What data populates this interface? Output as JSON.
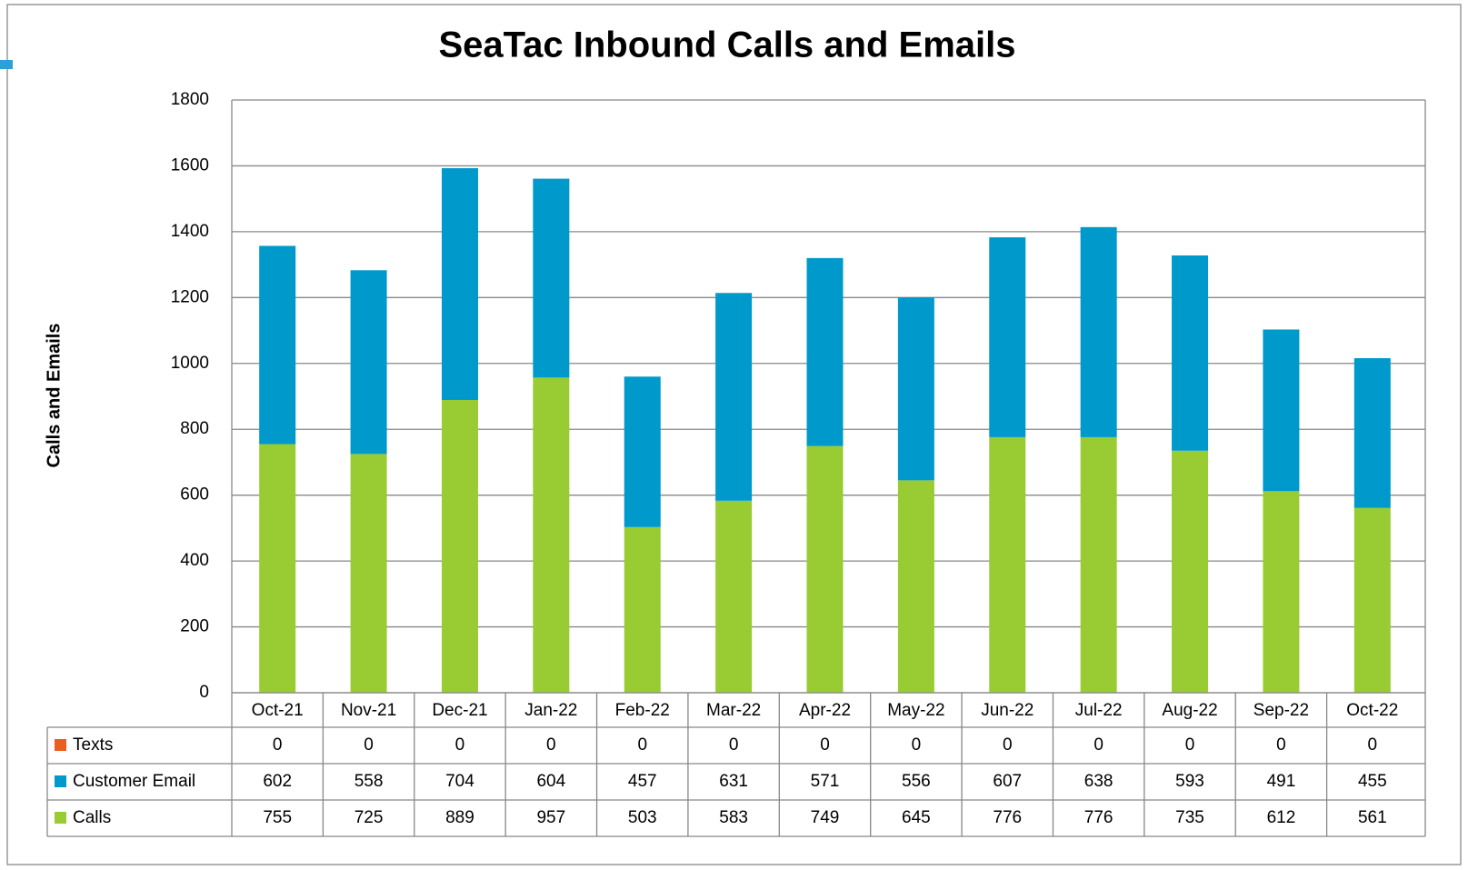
{
  "chart_data": {
    "type": "stacked_bar",
    "title": "SeaTac Inbound Calls and Emails",
    "y_label": "Calls and Emails",
    "categories": [
      "Oct-21",
      "Nov-21",
      "Dec-21",
      "Jan-22",
      "Feb-22",
      "Mar-22",
      "Apr-22",
      "May-22",
      "Jun-22",
      "Jul-22",
      "Aug-22",
      "Sep-22",
      "Oct-22"
    ],
    "series": [
      {
        "name": "Texts",
        "color": "#e8601c",
        "values": [
          0,
          0,
          0,
          0,
          0,
          0,
          0,
          0,
          0,
          0,
          0,
          0,
          0
        ]
      },
      {
        "name": "Customer Email",
        "color": "#0099cc",
        "values": [
          602,
          558,
          704,
          604,
          457,
          631,
          571,
          556,
          607,
          638,
          593,
          491,
          455
        ]
      },
      {
        "name": "Calls",
        "color": "#99cc33",
        "values": [
          755,
          725,
          889,
          957,
          503,
          583,
          749,
          645,
          776,
          776,
          735,
          612,
          561
        ]
      }
    ],
    "ylim": [
      0,
      1800
    ],
    "yticks": [
      0,
      200,
      400,
      600,
      800,
      1000,
      1200,
      1400,
      1600,
      1800
    ],
    "grid": true
  }
}
